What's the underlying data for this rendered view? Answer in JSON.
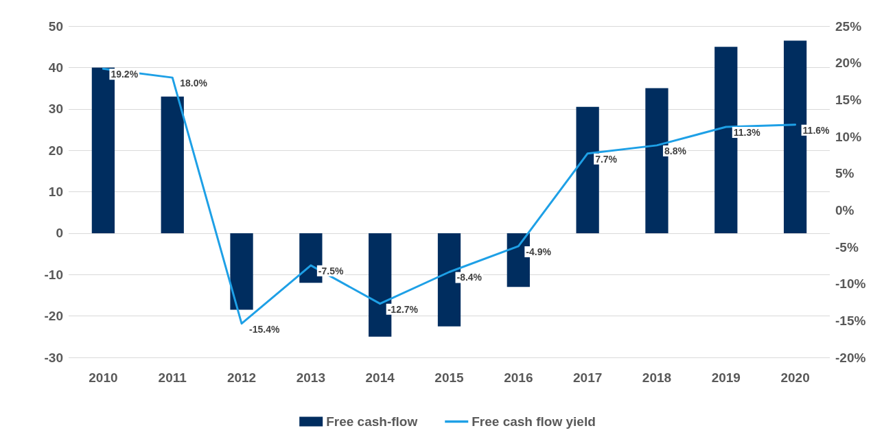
{
  "chart_data": {
    "type": "bar",
    "categories": [
      "2010",
      "2011",
      "2012",
      "2013",
      "2014",
      "2015",
      "2016",
      "2017",
      "2018",
      "2019",
      "2020"
    ],
    "series": [
      {
        "name": "Free cash-flow",
        "color": "#002d5f",
        "values": [
          40,
          33,
          -18.5,
          -12,
          -25,
          -22.5,
          -13,
          30.5,
          35,
          45,
          46.5
        ]
      },
      {
        "name": "Free cash flow yield",
        "type": "line",
        "axis": "y2",
        "color": "#1ea0e6",
        "values": [
          19.2,
          18.0,
          -15.4,
          -7.5,
          -12.7,
          -8.4,
          -4.9,
          7.7,
          8.8,
          11.3,
          11.6
        ],
        "value_labels": [
          "19.2%",
          "18.0%",
          "-15.4%",
          "-7.5%",
          "-12.7%",
          "-8.4%",
          "-4.9%",
          "7.7%",
          "8.8%",
          "11.3%",
          "11.6%"
        ]
      }
    ],
    "ylim": [
      -30,
      50
    ],
    "yticks": [
      -30,
      -20,
      -10,
      0,
      10,
      20,
      30,
      40,
      50
    ],
    "y2lim": [
      -20,
      25
    ],
    "y2ticks": [
      {
        "value": -20,
        "label": "-20%"
      },
      {
        "value": -15,
        "label": "-15%"
      },
      {
        "value": -10,
        "label": "-10%"
      },
      {
        "value": -5,
        "label": "-5%"
      },
      {
        "value": 0,
        "label": "0%"
      },
      {
        "value": 5,
        "label": "5%"
      },
      {
        "value": 10,
        "label": "10%"
      },
      {
        "value": 15,
        "label": "15%"
      },
      {
        "value": 20,
        "label": "20%"
      },
      {
        "value": 25,
        "label": "25%"
      }
    ],
    "grid": "y",
    "legend": "bottom",
    "marker": "none",
    "line_style": "solid"
  }
}
